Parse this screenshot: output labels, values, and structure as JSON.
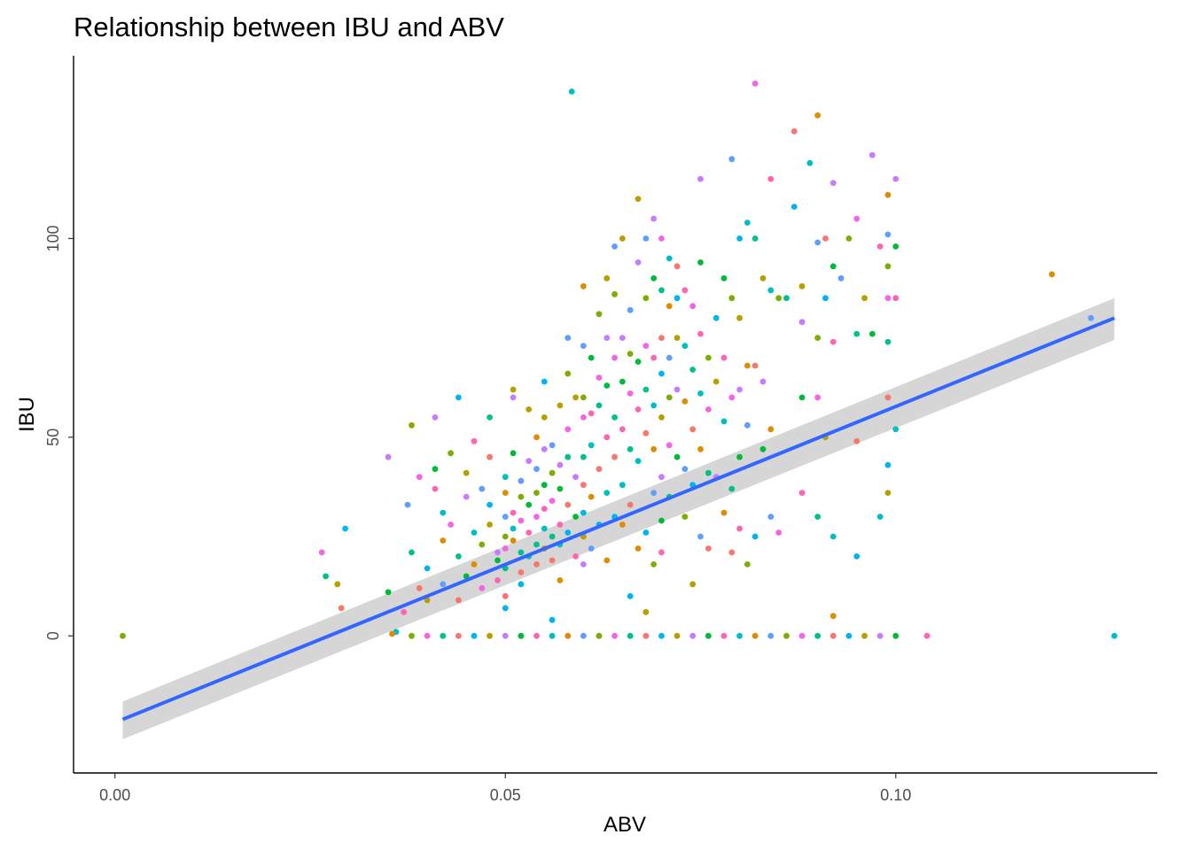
{
  "chart_data": {
    "type": "scatter",
    "title": "Relationship between IBU and ABV",
    "xlabel": "ABV",
    "ylabel": "IBU",
    "xlim": [
      -0.0053,
      0.1335
    ],
    "ylim": [
      -34.5,
      146
    ],
    "x_ticks": [
      {
        "value": 0.0,
        "label": "0.00"
      },
      {
        "value": 0.05,
        "label": "0.05"
      },
      {
        "value": 0.1,
        "label": "0.10"
      }
    ],
    "y_ticks": [
      {
        "value": 0,
        "label": "0"
      },
      {
        "value": 50,
        "label": "50"
      },
      {
        "value": 100,
        "label": "100"
      }
    ],
    "grid": false,
    "legend": "none",
    "point_colors": [
      "#F8766D",
      "#DE8C00",
      "#B79F00",
      "#7CAE00",
      "#00BA38",
      "#00C08B",
      "#00BFC4",
      "#00B4F0",
      "#619CFF",
      "#C77CFF",
      "#F564E3",
      "#FF64B0"
    ],
    "trend_line": {
      "type": "linear",
      "x": [
        0.001,
        0.128
      ],
      "y": [
        -21,
        80
      ],
      "ci_upper": [
        -16.5,
        85
      ],
      "ci_lower": [
        -26,
        74.5
      ],
      "color": "#3366FF",
      "band_color": "#999999"
    },
    "points": [
      [
        0.001,
        0
      ],
      [
        0.0265,
        21
      ],
      [
        0.027,
        15
      ],
      [
        0.029,
        7
      ],
      [
        0.0295,
        27
      ],
      [
        0.0285,
        13
      ],
      [
        0.035,
        45
      ],
      [
        0.035,
        11
      ],
      [
        0.037,
        6
      ],
      [
        0.036,
        1
      ],
      [
        0.0355,
        0.5
      ],
      [
        0.0375,
        33
      ],
      [
        0.038,
        53
      ],
      [
        0.039,
        40
      ],
      [
        0.038,
        21
      ],
      [
        0.039,
        12
      ],
      [
        0.04,
        17
      ],
      [
        0.04,
        9
      ],
      [
        0.041,
        55
      ],
      [
        0.041,
        42
      ],
      [
        0.041,
        37
      ],
      [
        0.042,
        31
      ],
      [
        0.042,
        24
      ],
      [
        0.042,
        13
      ],
      [
        0.043,
        46
      ],
      [
        0.043,
        28
      ],
      [
        0.044,
        20
      ],
      [
        0.044,
        9
      ],
      [
        0.044,
        60
      ],
      [
        0.045,
        41
      ],
      [
        0.045,
        35
      ],
      [
        0.045,
        15
      ],
      [
        0.046,
        49
      ],
      [
        0.046,
        26
      ],
      [
        0.046,
        18
      ],
      [
        0.047,
        37
      ],
      [
        0.047,
        23
      ],
      [
        0.047,
        12
      ],
      [
        0.048,
        55
      ],
      [
        0.048,
        45
      ],
      [
        0.048,
        33
      ],
      [
        0.048,
        28
      ],
      [
        0.049,
        21
      ],
      [
        0.049,
        19
      ],
      [
        0.049,
        14
      ],
      [
        0.05,
        40
      ],
      [
        0.05,
        36
      ],
      [
        0.05,
        30
      ],
      [
        0.05,
        25
      ],
      [
        0.05,
        22
      ],
      [
        0.05,
        17
      ],
      [
        0.05,
        10
      ],
      [
        0.05,
        7
      ],
      [
        0.051,
        62
      ],
      [
        0.051,
        60
      ],
      [
        0.051,
        46
      ],
      [
        0.051,
        31
      ],
      [
        0.051,
        27
      ],
      [
        0.051,
        24
      ],
      [
        0.052,
        39
      ],
      [
        0.052,
        35
      ],
      [
        0.052,
        29
      ],
      [
        0.052,
        21
      ],
      [
        0.052,
        16
      ],
      [
        0.052,
        13
      ],
      [
        0.053,
        57
      ],
      [
        0.053,
        44
      ],
      [
        0.053,
        33
      ],
      [
        0.053,
        26
      ],
      [
        0.053,
        20
      ],
      [
        0.054,
        50
      ],
      [
        0.054,
        42
      ],
      [
        0.054,
        36
      ],
      [
        0.054,
        30
      ],
      [
        0.054,
        23
      ],
      [
        0.054,
        18
      ],
      [
        0.055,
        64
      ],
      [
        0.055,
        55
      ],
      [
        0.055,
        47
      ],
      [
        0.055,
        38
      ],
      [
        0.055,
        32
      ],
      [
        0.055,
        27
      ],
      [
        0.055,
        22
      ],
      [
        0.056,
        48
      ],
      [
        0.056,
        41
      ],
      [
        0.056,
        34
      ],
      [
        0.056,
        25
      ],
      [
        0.056,
        19
      ],
      [
        0.056,
        4
      ],
      [
        0.057,
        58
      ],
      [
        0.057,
        43
      ],
      [
        0.057,
        37
      ],
      [
        0.057,
        28
      ],
      [
        0.057,
        23
      ],
      [
        0.057,
        14
      ],
      [
        0.058,
        75
      ],
      [
        0.058,
        66
      ],
      [
        0.058,
        52
      ],
      [
        0.058,
        45
      ],
      [
        0.058,
        33
      ],
      [
        0.058,
        26
      ],
      [
        0.059,
        60
      ],
      [
        0.059,
        40
      ],
      [
        0.059,
        30
      ],
      [
        0.059,
        20
      ],
      [
        0.0585,
        137
      ],
      [
        0.06,
        88
      ],
      [
        0.06,
        73
      ],
      [
        0.06,
        60
      ],
      [
        0.06,
        55
      ],
      [
        0.06,
        45
      ],
      [
        0.06,
        38
      ],
      [
        0.06,
        31
      ],
      [
        0.06,
        25
      ],
      [
        0.06,
        18
      ],
      [
        0.061,
        70
      ],
      [
        0.061,
        56
      ],
      [
        0.061,
        48
      ],
      [
        0.061,
        35
      ],
      [
        0.061,
        22
      ],
      [
        0.062,
        81
      ],
      [
        0.062,
        65
      ],
      [
        0.062,
        58
      ],
      [
        0.062,
        42
      ],
      [
        0.062,
        28
      ],
      [
        0.063,
        90
      ],
      [
        0.063,
        75
      ],
      [
        0.063,
        63
      ],
      [
        0.063,
        50
      ],
      [
        0.063,
        36
      ],
      [
        0.063,
        19
      ],
      [
        0.064,
        98
      ],
      [
        0.064,
        86
      ],
      [
        0.064,
        70
      ],
      [
        0.064,
        55
      ],
      [
        0.064,
        45
      ],
      [
        0.064,
        30
      ],
      [
        0.065,
        100
      ],
      [
        0.065,
        75
      ],
      [
        0.065,
        64
      ],
      [
        0.065,
        52
      ],
      [
        0.065,
        38
      ],
      [
        0.065,
        28
      ],
      [
        0.066,
        82
      ],
      [
        0.066,
        71
      ],
      [
        0.066,
        61
      ],
      [
        0.066,
        47
      ],
      [
        0.066,
        33
      ],
      [
        0.066,
        10
      ],
      [
        0.067,
        110
      ],
      [
        0.067,
        94
      ],
      [
        0.067,
        69
      ],
      [
        0.067,
        57
      ],
      [
        0.067,
        44
      ],
      [
        0.067,
        22
      ],
      [
        0.068,
        100
      ],
      [
        0.068,
        85
      ],
      [
        0.068,
        73
      ],
      [
        0.068,
        62
      ],
      [
        0.068,
        51
      ],
      [
        0.068,
        26
      ],
      [
        0.068,
        6
      ],
      [
        0.069,
        105
      ],
      [
        0.069,
        90
      ],
      [
        0.069,
        70
      ],
      [
        0.069,
        58
      ],
      [
        0.069,
        47
      ],
      [
        0.069,
        36
      ],
      [
        0.069,
        18
      ],
      [
        0.07,
        100
      ],
      [
        0.07,
        87
      ],
      [
        0.07,
        75
      ],
      [
        0.07,
        66
      ],
      [
        0.07,
        55
      ],
      [
        0.07,
        40
      ],
      [
        0.07,
        29
      ],
      [
        0.07,
        21
      ],
      [
        0.071,
        95
      ],
      [
        0.071,
        83
      ],
      [
        0.071,
        70
      ],
      [
        0.071,
        60
      ],
      [
        0.071,
        48
      ],
      [
        0.071,
        35
      ],
      [
        0.072,
        93
      ],
      [
        0.072,
        85
      ],
      [
        0.072,
        75
      ],
      [
        0.072,
        62
      ],
      [
        0.072,
        45
      ],
      [
        0.073,
        87
      ],
      [
        0.073,
        73
      ],
      [
        0.073,
        59
      ],
      [
        0.073,
        42
      ],
      [
        0.073,
        30
      ],
      [
        0.074,
        83
      ],
      [
        0.074,
        67
      ],
      [
        0.074,
        52
      ],
      [
        0.074,
        38
      ],
      [
        0.074,
        13
      ],
      [
        0.075,
        115
      ],
      [
        0.075,
        94
      ],
      [
        0.075,
        76
      ],
      [
        0.075,
        61
      ],
      [
        0.075,
        47
      ],
      [
        0.075,
        25
      ],
      [
        0.076,
        70
      ],
      [
        0.076,
        57
      ],
      [
        0.076,
        41
      ],
      [
        0.076,
        22
      ],
      [
        0.077,
        80
      ],
      [
        0.077,
        64
      ],
      [
        0.077,
        40
      ],
      [
        0.078,
        90
      ],
      [
        0.078,
        70
      ],
      [
        0.078,
        54
      ],
      [
        0.078,
        31
      ],
      [
        0.079,
        120
      ],
      [
        0.079,
        85
      ],
      [
        0.079,
        60
      ],
      [
        0.079,
        37
      ],
      [
        0.079,
        21
      ],
      [
        0.08,
        100
      ],
      [
        0.08,
        80
      ],
      [
        0.08,
        62
      ],
      [
        0.08,
        45
      ],
      [
        0.08,
        27
      ],
      [
        0.081,
        104
      ],
      [
        0.081,
        68
      ],
      [
        0.081,
        53
      ],
      [
        0.081,
        18
      ],
      [
        0.082,
        139
      ],
      [
        0.082,
        100
      ],
      [
        0.082,
        68
      ],
      [
        0.082,
        25
      ],
      [
        0.083,
        90
      ],
      [
        0.083,
        64
      ],
      [
        0.083,
        47
      ],
      [
        0.084,
        115
      ],
      [
        0.084,
        87
      ],
      [
        0.084,
        52
      ],
      [
        0.084,
        30
      ],
      [
        0.085,
        85
      ],
      [
        0.085,
        26
      ],
      [
        0.086,
        85
      ],
      [
        0.087,
        127
      ],
      [
        0.087,
        108
      ],
      [
        0.088,
        88
      ],
      [
        0.088,
        79
      ],
      [
        0.088,
        60
      ],
      [
        0.088,
        36
      ],
      [
        0.089,
        119
      ],
      [
        0.09,
        131
      ],
      [
        0.09,
        99
      ],
      [
        0.09,
        75
      ],
      [
        0.09,
        60
      ],
      [
        0.09,
        30
      ],
      [
        0.091,
        100
      ],
      [
        0.091,
        85
      ],
      [
        0.091,
        50
      ],
      [
        0.092,
        114
      ],
      [
        0.092,
        93
      ],
      [
        0.092,
        74
      ],
      [
        0.092,
        25
      ],
      [
        0.092,
        5
      ],
      [
        0.093,
        90
      ],
      [
        0.094,
        100
      ],
      [
        0.095,
        105
      ],
      [
        0.095,
        76
      ],
      [
        0.095,
        49
      ],
      [
        0.095,
        20
      ],
      [
        0.096,
        85
      ],
      [
        0.097,
        121
      ],
      [
        0.097,
        76
      ],
      [
        0.098,
        98
      ],
      [
        0.098,
        30
      ],
      [
        0.099,
        111
      ],
      [
        0.099,
        101
      ],
      [
        0.099,
        93
      ],
      [
        0.099,
        85
      ],
      [
        0.099,
        74
      ],
      [
        0.099,
        60
      ],
      [
        0.099,
        43
      ],
      [
        0.099,
        36
      ],
      [
        0.1,
        115
      ],
      [
        0.1,
        98
      ],
      [
        0.1,
        85
      ],
      [
        0.1,
        52
      ],
      [
        0.12,
        91
      ],
      [
        0.125,
        80
      ],
      [
        0.038,
        0
      ],
      [
        0.04,
        0
      ],
      [
        0.042,
        0
      ],
      [
        0.044,
        0
      ],
      [
        0.046,
        0
      ],
      [
        0.048,
        0
      ],
      [
        0.05,
        0
      ],
      [
        0.052,
        0
      ],
      [
        0.054,
        0
      ],
      [
        0.056,
        0
      ],
      [
        0.058,
        0
      ],
      [
        0.06,
        0
      ],
      [
        0.062,
        0
      ],
      [
        0.064,
        0
      ],
      [
        0.066,
        0
      ],
      [
        0.068,
        0
      ],
      [
        0.07,
        0
      ],
      [
        0.072,
        0
      ],
      [
        0.074,
        0
      ],
      [
        0.076,
        0
      ],
      [
        0.078,
        0
      ],
      [
        0.08,
        0
      ],
      [
        0.082,
        0
      ],
      [
        0.084,
        0
      ],
      [
        0.086,
        0
      ],
      [
        0.088,
        0
      ],
      [
        0.09,
        0
      ],
      [
        0.092,
        0
      ],
      [
        0.094,
        0
      ],
      [
        0.096,
        0
      ],
      [
        0.098,
        0
      ],
      [
        0.1,
        0
      ],
      [
        0.104,
        0
      ],
      [
        0.128,
        0
      ]
    ]
  }
}
